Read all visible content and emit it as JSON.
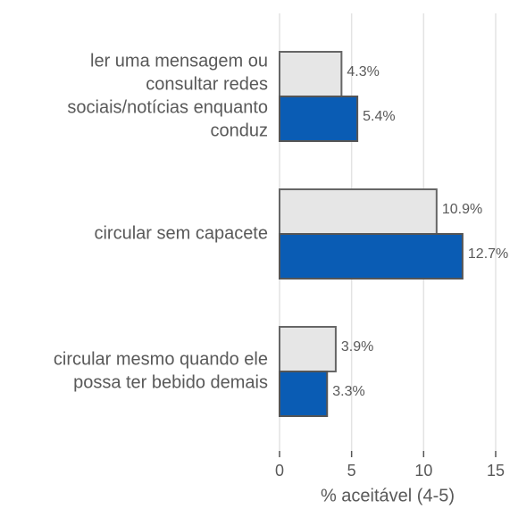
{
  "chart_data": {
    "type": "bar",
    "orientation": "horizontal",
    "categories": [
      [
        "ler uma mensagem ou",
        "consultar redes",
        "sociais/notícias enquanto",
        "conduz"
      ],
      [
        "circular sem capacete"
      ],
      [
        "circular mesmo quando ele",
        "possa ter bebido demais"
      ]
    ],
    "series": [
      {
        "color": "#e6e6e6",
        "values": [
          4.3,
          10.9,
          3.9
        ],
        "value_labels": [
          "4.3%",
          "10.9%",
          "3.9%"
        ]
      },
      {
        "color": "#0a5cb4",
        "values": [
          5.4,
          12.7,
          3.3
        ],
        "value_labels": [
          "5.4%",
          "12.7%",
          "3.3%"
        ]
      }
    ],
    "xlabel": "% aceitável (4-5)",
    "xlim": [
      0,
      15
    ],
    "xticks": [
      0,
      5,
      10,
      15
    ],
    "grid": true
  }
}
